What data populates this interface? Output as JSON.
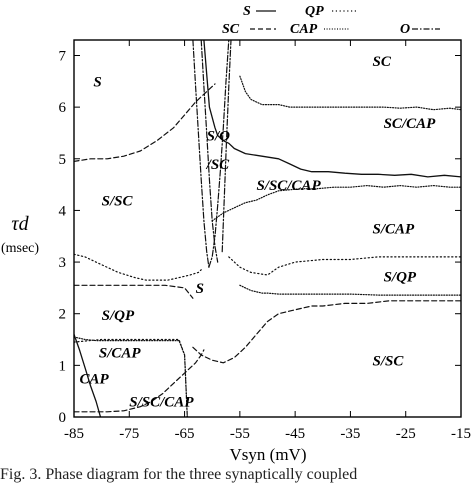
{
  "chart_data": {
    "type": "line",
    "title": "",
    "xlabel": "Vsyn (mV)",
    "ylabel": "τd",
    "ylabel_unit": "(msec)",
    "xlim": [
      -85,
      -15
    ],
    "ylim": [
      0,
      7.3
    ],
    "xticks": [
      -85,
      -75,
      -65,
      -55,
      -45,
      -35,
      -25,
      -15
    ],
    "xtick_labels": [
      "-85",
      "-75",
      "-65",
      "-55",
      "-45",
      "-35",
      "-25",
      "-15"
    ],
    "yticks": [
      0,
      1,
      2,
      3,
      4,
      5,
      6,
      7
    ],
    "ytick_labels": [
      "0",
      "1",
      "2",
      "3",
      "4",
      "5",
      "6",
      "7"
    ],
    "legend_placement": "top, outside plot",
    "legend": [
      {
        "label": "S",
        "style": "solid"
      },
      {
        "label": "QP",
        "style": "dotted"
      },
      {
        "label": "SC",
        "style": "dashed"
      },
      {
        "label": "CAP",
        "style": "dense-dotted"
      },
      {
        "label": "O",
        "style": "dash-dot"
      }
    ],
    "region_labels": [
      {
        "text": "S",
        "x": -81.5,
        "y": 6.4
      },
      {
        "text": "SC",
        "x": -31,
        "y": 6.8
      },
      {
        "text": "S/O",
        "x": -61,
        "y": 5.35
      },
      {
        "text": "/SC",
        "x": -61,
        "y": 4.8
      },
      {
        "text": "SC/CAP",
        "x": -29,
        "y": 5.6
      },
      {
        "text": "S/SC/CAP",
        "x": -52,
        "y": 4.4
      },
      {
        "text": "S/SC",
        "x": -80,
        "y": 4.1
      },
      {
        "text": "S/CAP",
        "x": -31,
        "y": 3.55
      },
      {
        "text": "S/QP",
        "x": -29,
        "y": 2.62
      },
      {
        "text": "S",
        "x": -63,
        "y": 2.4
      },
      {
        "text": "S/QP",
        "x": -80,
        "y": 1.88
      },
      {
        "text": "S/CAP",
        "x": -80.5,
        "y": 1.15
      },
      {
        "text": "CAP",
        "x": -84,
        "y": 0.65
      },
      {
        "text": "S/SC/CAP",
        "x": -75,
        "y": 0.2
      },
      {
        "text": "S/SC",
        "x": -31,
        "y": 1.0
      }
    ],
    "series": [
      {
        "name": "S",
        "style": "solid",
        "segments": [
          {
            "x": [
              -61.5,
              -60.5,
              -59.5,
              -59,
              -58.5,
              -58,
              -57,
              -56,
              -54,
              -51,
              -48,
              -46,
              -44,
              -42,
              -39,
              -36,
              -33,
              -30,
              -27,
              -24,
              -21,
              -18,
              -15
            ],
            "y": [
              7.3,
              6.0,
              5.6,
              5.45,
              5.4,
              5.35,
              5.3,
              5.2,
              5.1,
              5.05,
              5.0,
              4.9,
              4.8,
              4.75,
              4.75,
              4.72,
              4.7,
              4.7,
              4.68,
              4.7,
              4.65,
              4.68,
              4.65
            ]
          },
          {
            "x": [
              -85,
              -84,
              -83,
              -82,
              -81,
              -80.2
            ],
            "y": [
              1.6,
              1.3,
              0.95,
              0.6,
              0.3,
              0.0
            ]
          }
        ]
      },
      {
        "name": "QP",
        "style": "dotted",
        "segments": [
          {
            "x": [
              -85,
              -83,
              -80,
              -77,
              -74,
              -72,
              -70,
              -68,
              -66,
              -64,
              -62.5,
              -62
            ],
            "y": [
              3.15,
              3.1,
              2.95,
              2.8,
              2.7,
              2.65,
              2.65,
              2.65,
              2.7,
              2.75,
              2.8,
              2.85
            ]
          },
          {
            "x": [
              -57,
              -55,
              -53,
              -50,
              -48,
              -45,
              -40,
              -35,
              -30,
              -25,
              -20,
              -15
            ],
            "y": [
              3.1,
              2.9,
              2.8,
              2.75,
              2.9,
              3.0,
              3.05,
              3.05,
              3.1,
              3.1,
              3.1,
              3.1
            ]
          },
          {
            "x": [
              -85,
              -80,
              -75,
              -70,
              -66,
              -65,
              -64.5
            ],
            "y": [
              1.45,
              1.5,
              1.5,
              1.5,
              1.5,
              1.2,
              0.0
            ]
          }
        ]
      },
      {
        "name": "SC",
        "style": "dashed",
        "segments": [
          {
            "x": [
              -85,
              -82,
              -79,
              -76,
              -73,
              -70,
              -67,
              -65,
              -63,
              -61,
              -59.5
            ],
            "y": [
              4.95,
              5.0,
              5.0,
              5.05,
              5.15,
              5.35,
              5.6,
              5.85,
              6.1,
              6.3,
              6.45
            ]
          },
          {
            "x": [
              -85,
              -83,
              -80,
              -77,
              -74,
              -71,
              -68.5,
              -65,
              -63.5
            ],
            "y": [
              2.55,
              2.55,
              2.55,
              2.55,
              2.55,
              2.55,
              2.55,
              2.5,
              2.3
            ]
          },
          {
            "x": [
              -63.5,
              -62,
              -60,
              -58,
              -56,
              -54,
              -52,
              -50,
              -48,
              -46,
              -44,
              -42,
              -40,
              -36,
              -32,
              -28,
              -24,
              -20,
              -15
            ],
            "y": [
              1.35,
              1.2,
              1.1,
              1.05,
              1.15,
              1.35,
              1.6,
              1.85,
              2.0,
              2.05,
              2.1,
              2.15,
              2.15,
              2.2,
              2.2,
              2.25,
              2.25,
              2.25,
              2.25
            ]
          },
          {
            "x": [
              -85,
              -82,
              -79,
              -76,
              -73,
              -71,
              -69,
              -67,
              -65,
              -63,
              -62,
              -61.5
            ],
            "y": [
              0.1,
              0.1,
              0.1,
              0.12,
              0.2,
              0.3,
              0.45,
              0.65,
              0.85,
              1.05,
              1.2,
              1.3
            ]
          }
        ]
      },
      {
        "name": "CAP",
        "style": "dense-dotted",
        "segments": [
          {
            "x": [
              -55,
              -54,
              -53,
              -52,
              -51,
              -50,
              -48,
              -46,
              -44,
              -41,
              -38,
              -35,
              -32,
              -29,
              -26,
              -23,
              -20,
              -17,
              -15
            ],
            "y": [
              6.6,
              6.3,
              6.15,
              6.1,
              6.05,
              6.05,
              6.05,
              6.0,
              6.0,
              6.0,
              6.0,
              6.0,
              6.0,
              6.0,
              5.98,
              6.0,
              5.95,
              5.98,
              5.95
            ]
          },
          {
            "x": [
              -60,
              -58,
              -56,
              -54,
              -52,
              -50,
              -48,
              -46,
              -44,
              -41,
              -38,
              -35,
              -32,
              -29,
              -26,
              -23,
              -20,
              -17,
              -15
            ],
            "y": [
              3.8,
              3.95,
              4.05,
              4.15,
              4.2,
              4.3,
              4.38,
              4.4,
              4.42,
              4.42,
              4.45,
              4.45,
              4.48,
              4.45,
              4.48,
              4.45,
              4.48,
              4.45,
              4.45
            ]
          },
          {
            "x": [
              -55,
              -53,
              -51,
              -50,
              -48,
              -45,
              -40,
              -35,
              -30,
              -25,
              -20,
              -15
            ],
            "y": [
              2.55,
              2.45,
              2.4,
              2.4,
              2.38,
              2.38,
              2.38,
              2.38,
              2.36,
              2.36,
              2.36,
              2.36
            ]
          },
          {
            "x": [
              -85,
              -83,
              -81,
              -78,
              -75,
              -72,
              -70,
              -68,
              -66,
              -65,
              -64.5
            ],
            "y": [
              1.55,
              1.5,
              1.48,
              1.48,
              1.48,
              1.48,
              1.48,
              1.48,
              1.48,
              1.2,
              0.0
            ]
          }
        ]
      },
      {
        "name": "O",
        "style": "dash-dot",
        "segments": [
          {
            "x": [
              -63.5,
              -63,
              -62.5,
              -62,
              -61.5,
              -61,
              -60.6
            ],
            "y": [
              7.3,
              6.4,
              5.5,
              4.6,
              3.8,
              3.2,
              2.9
            ]
          },
          {
            "x": [
              -60.6,
              -60,
              -59.5,
              -59,
              -58.5,
              -58,
              -57.5,
              -57
            ],
            "y": [
              2.9,
              3.1,
              3.5,
              4.1,
              4.8,
              5.6,
              6.5,
              7.3
            ]
          },
          {
            "x": [
              -62,
              -61.5,
              -61,
              -60.5,
              -60,
              -59.5,
              -59
            ],
            "y": [
              7.3,
              6.4,
              5.5,
              4.6,
              3.8,
              3.3,
              3.0
            ]
          },
          {
            "x": [
              -58.2,
              -57.8,
              -57.4,
              -57,
              -56.6
            ],
            "y": [
              3.2,
              4.3,
              5.4,
              6.4,
              7.3
            ]
          }
        ]
      }
    ]
  },
  "caption": {
    "text": "Fig. 3.  Phase diagram for the three synaptically coupled"
  }
}
